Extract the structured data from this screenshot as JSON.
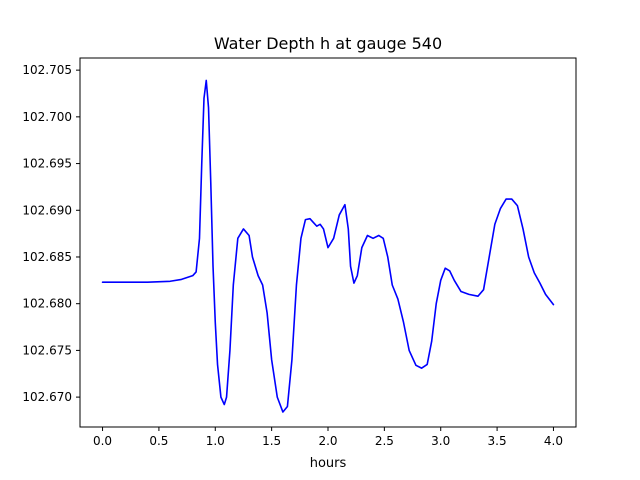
{
  "chart_data": {
    "type": "line",
    "title": "Water Depth h at gauge 540",
    "xlabel": "hours",
    "ylabel": "",
    "xlim": [
      -0.2,
      4.2
    ],
    "ylim": [
      102.6668,
      102.7063
    ],
    "xticks": [
      0.0,
      0.5,
      1.0,
      1.5,
      2.0,
      2.5,
      3.0,
      3.5,
      4.0
    ],
    "xtick_labels": [
      "0.0",
      "0.5",
      "1.0",
      "1.5",
      "2.0",
      "2.5",
      "3.0",
      "3.5",
      "4.0"
    ],
    "yticks": [
      102.67,
      102.675,
      102.68,
      102.685,
      102.69,
      102.695,
      102.7,
      102.705
    ],
    "ytick_labels": [
      "102.670",
      "102.675",
      "102.680",
      "102.685",
      "102.690",
      "102.695",
      "102.700",
      "102.705"
    ],
    "grid": false,
    "series": [
      {
        "color": "#0000ff",
        "x": [
          0.0,
          0.2,
          0.4,
          0.6,
          0.7,
          0.75,
          0.8,
          0.83,
          0.86,
          0.88,
          0.9,
          0.92,
          0.94,
          0.96,
          0.98,
          1.0,
          1.02,
          1.05,
          1.08,
          1.1,
          1.13,
          1.16,
          1.2,
          1.25,
          1.3,
          1.33,
          1.38,
          1.42,
          1.46,
          1.5,
          1.55,
          1.6,
          1.64,
          1.68,
          1.72,
          1.76,
          1.8,
          1.84,
          1.87,
          1.9,
          1.93,
          1.96,
          2.0,
          2.05,
          2.1,
          2.15,
          2.18,
          2.2,
          2.23,
          2.26,
          2.3,
          2.35,
          2.4,
          2.45,
          2.49,
          2.53,
          2.57,
          2.62,
          2.67,
          2.72,
          2.78,
          2.83,
          2.88,
          2.92,
          2.96,
          3.0,
          3.04,
          3.08,
          3.12,
          3.18,
          3.25,
          3.33,
          3.38,
          3.43,
          3.48,
          3.53,
          3.58,
          3.63,
          3.68,
          3.73,
          3.78,
          3.83,
          3.88,
          3.93,
          4.0
        ],
        "y": [
          102.6823,
          102.6823,
          102.6823,
          102.6824,
          102.6826,
          102.6828,
          102.683,
          102.6834,
          102.687,
          102.695,
          102.702,
          102.7039,
          102.701,
          102.693,
          102.684,
          102.678,
          102.6735,
          102.67,
          102.6692,
          102.67,
          102.675,
          102.682,
          102.687,
          102.688,
          102.6873,
          102.685,
          102.683,
          102.682,
          102.679,
          102.674,
          102.67,
          102.6684,
          102.669,
          102.674,
          102.682,
          102.687,
          102.689,
          102.6891,
          102.6887,
          102.6883,
          102.6885,
          102.688,
          102.686,
          102.687,
          102.6895,
          102.6906,
          102.688,
          102.684,
          102.6822,
          102.683,
          102.686,
          102.6873,
          102.687,
          102.6873,
          102.687,
          102.685,
          102.682,
          102.6805,
          102.678,
          102.675,
          102.6734,
          102.6731,
          102.6735,
          102.676,
          102.68,
          102.6825,
          102.6838,
          102.6835,
          102.6825,
          102.6813,
          102.681,
          102.6808,
          102.6815,
          102.685,
          102.6885,
          102.6902,
          102.6912,
          102.6912,
          102.6905,
          102.688,
          102.685,
          102.6833,
          102.6822,
          102.681,
          102.6799
        ]
      }
    ]
  }
}
